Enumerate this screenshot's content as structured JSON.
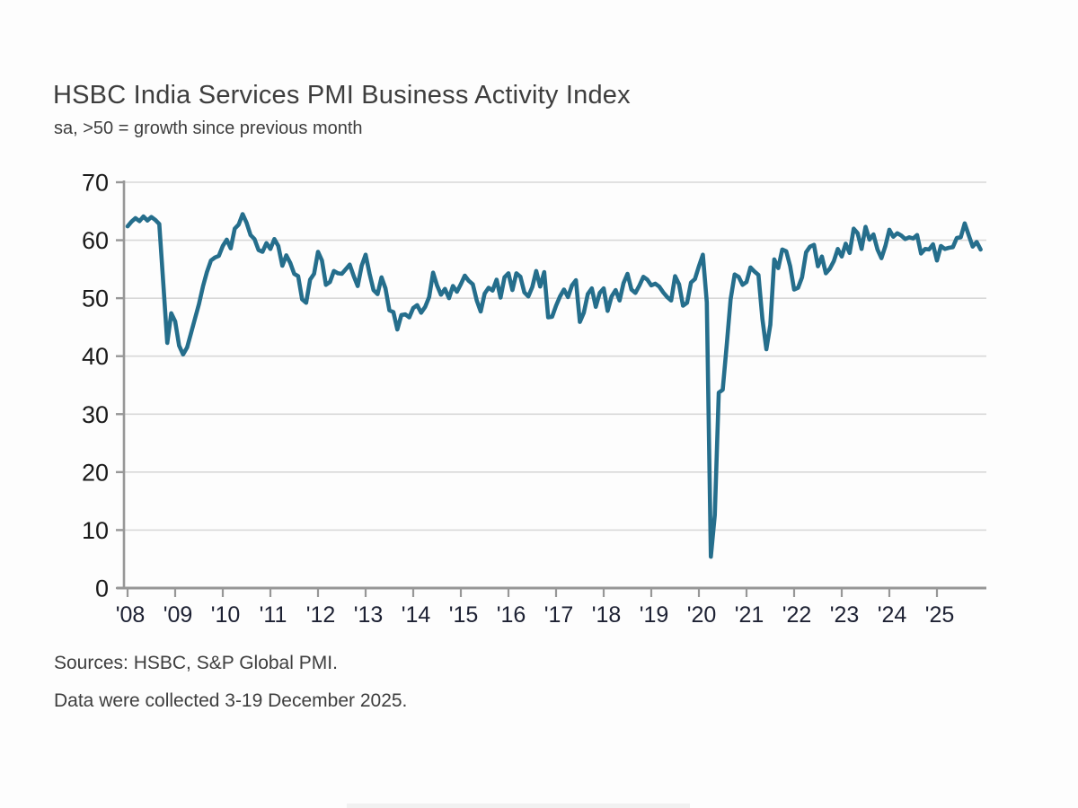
{
  "page": {
    "title": "HSBC India Services PMI Business Activity Index",
    "subtitle": "sa, >50 = growth since previous month",
    "source_line": "Sources: HSBC, S&P Global PMI.",
    "collection_line": "Data were collected 3-19 December 2025."
  },
  "chart_data": {
    "type": "line",
    "title": "HSBC India Services PMI Business Activity Index",
    "subtitle": "sa, >50 = growth since previous month",
    "xlabel": "",
    "ylabel": "",
    "ylim": [
      0,
      70
    ],
    "y_ticks": [
      0,
      10,
      20,
      30,
      40,
      50,
      60,
      70
    ],
    "x_tick_labels": [
      "'08",
      "'09",
      "'10",
      "'11",
      "'12",
      "'13",
      "'14",
      "'15",
      "'16",
      "'17",
      "'18",
      "'19",
      "'20",
      "'21",
      "'22",
      "'23",
      "'24",
      "'25"
    ],
    "grid": "horizontal",
    "legend_position": "none",
    "frequency": "monthly",
    "start": "2008-01",
    "end": "2025-12",
    "line_color": "#256e8c",
    "grid_color": "#d8d8d8",
    "axis_color": "#979797",
    "y_tick_label_color": "#1a1a1a",
    "x_tick_label_color": "#1d2133",
    "series": [
      {
        "name": "HSBC India Services PMI Business Activity Index (sa)",
        "values": [
          62.4,
          63.2,
          63.8,
          63.3,
          64.1,
          63.4,
          64.0,
          63.5,
          62.8,
          52.5,
          42.3,
          47.4,
          46.0,
          41.8,
          40.3,
          41.5,
          44.0,
          46.5,
          49.0,
          52.0,
          54.5,
          56.5,
          57.0,
          57.3,
          59.0,
          60.1,
          58.6,
          62.0,
          62.7,
          64.5,
          63.0,
          60.9,
          60.2,
          58.3,
          58.0,
          59.5,
          58.5,
          60.2,
          59.0,
          55.6,
          57.4,
          56.1,
          54.2,
          53.8,
          49.8,
          49.2,
          53.2,
          54.2,
          58.0,
          56.5,
          52.3,
          52.8,
          54.7,
          54.3,
          54.2,
          55.0,
          55.8,
          53.8,
          52.1,
          55.6,
          57.5,
          54.2,
          51.4,
          50.7,
          53.6,
          51.7,
          47.9,
          47.6,
          44.6,
          47.1,
          47.2,
          46.7,
          48.3,
          48.8,
          47.5,
          48.5,
          50.2,
          54.4,
          52.2,
          50.6,
          51.6,
          50.0,
          52.1,
          51.1,
          52.4,
          53.9,
          53.0,
          52.4,
          49.6,
          47.7,
          50.8,
          51.8,
          51.3,
          53.2,
          50.1,
          53.6,
          54.3,
          51.4,
          54.3,
          53.7,
          51.0,
          50.3,
          51.9,
          54.7,
          52.0,
          54.5,
          46.7,
          46.8,
          48.7,
          50.3,
          51.5,
          50.2,
          52.2,
          53.1,
          45.9,
          47.5,
          50.7,
          51.7,
          48.5,
          50.9,
          51.7,
          47.8,
          50.3,
          51.4,
          49.6,
          52.6,
          54.2,
          51.5,
          50.9,
          52.2,
          53.7,
          53.2,
          52.2,
          52.5,
          52.0,
          51.0,
          50.2,
          49.6,
          53.8,
          52.4,
          48.7,
          49.2,
          52.7,
          53.3,
          55.5,
          57.5,
          49.3,
          5.4,
          12.6,
          33.7,
          34.2,
          41.8,
          49.8,
          54.1,
          53.7,
          52.3,
          52.8,
          55.3,
          54.6,
          54.0,
          46.4,
          41.2,
          45.4,
          56.7,
          55.2,
          58.4,
          58.1,
          55.5,
          51.5,
          51.8,
          53.6,
          57.9,
          58.9,
          59.2,
          55.5,
          57.2,
          54.3,
          55.1,
          56.4,
          58.5,
          57.2,
          59.4,
          57.8,
          62.0,
          61.2,
          58.5,
          62.3,
          60.1,
          61.0,
          58.4,
          56.9,
          59.0,
          61.8,
          60.6,
          61.2,
          60.8,
          60.2,
          60.5,
          60.3,
          60.9,
          57.7,
          58.5,
          58.4,
          59.3,
          56.5,
          59.0,
          58.5,
          58.7,
          58.8,
          60.4,
          60.5,
          62.9,
          60.9,
          58.9,
          59.7,
          58.4
        ]
      }
    ]
  }
}
